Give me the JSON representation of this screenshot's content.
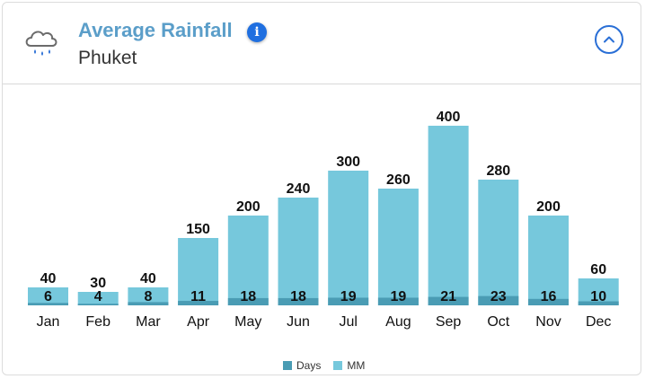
{
  "header": {
    "title": "Average Rainfall",
    "subtitle": "Phuket",
    "info_icon": "i",
    "icons": {
      "weather": "rain-cloud-icon",
      "info": "info-icon",
      "collapse": "chevron-up-icon"
    }
  },
  "colors": {
    "days": "#4a9cb4",
    "mm": "#76c8dc",
    "title": "#5b9ec9",
    "accent": "#2a6fd6"
  },
  "chart_data": {
    "type": "bar",
    "categories": [
      "Jan",
      "Feb",
      "Mar",
      "Apr",
      "May",
      "Jun",
      "Jul",
      "Aug",
      "Sep",
      "Oct",
      "Nov",
      "Dec"
    ],
    "series": [
      {
        "name": "Days",
        "values": [
          6,
          4,
          8,
          11,
          18,
          18,
          19,
          19,
          21,
          23,
          16,
          10
        ]
      },
      {
        "name": "MM",
        "values": [
          40,
          30,
          40,
          150,
          200,
          240,
          300,
          260,
          400,
          280,
          200,
          60
        ]
      }
    ],
    "legend": "bottom-center",
    "grid": false
  }
}
